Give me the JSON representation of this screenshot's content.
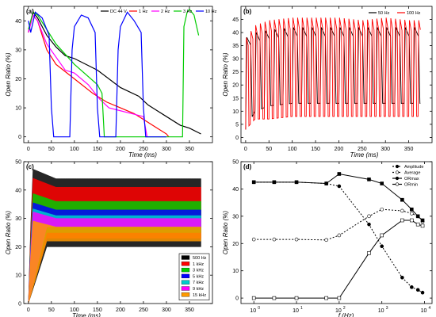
{
  "chart_data": [
    {
      "panel": "(a)",
      "type": "line",
      "xlabel": "Time (ms)",
      "ylabel": "Open Ratio (%)",
      "xlim": [
        -10,
        400
      ],
      "ylim": [
        -2,
        45
      ],
      "xticks": [
        0,
        50,
        100,
        150,
        200,
        250,
        300,
        350
      ],
      "yticks": [
        0,
        10,
        20,
        30,
        40
      ],
      "legend": "top-right",
      "series": [
        {
          "name": "DC 44 V",
          "color": "#000000",
          "x": [
            0,
            10,
            20,
            40,
            60,
            80,
            100,
            150,
            200,
            240,
            260,
            280,
            300,
            330,
            350,
            375
          ],
          "y": [
            36,
            43,
            41,
            35,
            31,
            28,
            27,
            23,
            17,
            14,
            11,
            9,
            7,
            4,
            3,
            1
          ]
        },
        {
          "name": "1 Hz",
          "color": "#ff0000",
          "x": [
            0,
            10,
            20,
            40,
            60,
            100,
            140,
            170,
            200,
            230,
            260,
            280,
            300,
            305
          ],
          "y": [
            36,
            42,
            40,
            30,
            25,
            20,
            15,
            12,
            10,
            8,
            5,
            3,
            1,
            0
          ]
        },
        {
          "name": "2 Hz",
          "color": "#ff00ff",
          "x": [
            0,
            10,
            20,
            40,
            80,
            100,
            130,
            155,
            175,
            200,
            225,
            250,
            258
          ],
          "y": [
            36,
            42,
            40,
            32,
            23,
            22,
            18,
            13,
            10,
            9,
            8,
            7,
            0
          ]
        },
        {
          "name": "3 Hz",
          "color": "#00cc00",
          "x": [
            0,
            10,
            20,
            60,
            100,
            150,
            160,
            165,
            170,
            335,
            338,
            345,
            350,
            360,
            370
          ],
          "y": [
            37,
            43,
            42,
            32,
            25,
            18,
            15,
            0,
            0,
            0,
            38,
            43,
            44,
            42,
            35
          ]
        },
        {
          "name": "10 Hz",
          "color": "#0000ff",
          "x": [
            0,
            5,
            15,
            30,
            45,
            50,
            55,
            90,
            95,
            100,
            115,
            130,
            145,
            150,
            155,
            190,
            195,
            200,
            215,
            230,
            245,
            250,
            255,
            300
          ],
          "y": [
            40,
            36,
            43,
            41,
            35,
            10,
            0,
            0,
            30,
            38,
            42,
            41,
            36,
            10,
            0,
            0,
            30,
            38,
            43,
            40,
            36,
            10,
            0,
            0
          ]
        }
      ]
    },
    {
      "panel": "(b)",
      "type": "line",
      "xlabel": "Time (ms)",
      "ylabel": "Open Ratio (%)",
      "xlim": [
        -10,
        400
      ],
      "ylim": [
        -2,
        50
      ],
      "xticks": [
        0,
        50,
        100,
        150,
        200,
        250,
        300,
        350
      ],
      "yticks": [
        0,
        5,
        10,
        15,
        20,
        25,
        30,
        35,
        40,
        45
      ],
      "legend": "top-right",
      "series": [
        {
          "name": "50 Hz",
          "color": "#000000",
          "x": [
            0,
            20,
            50,
            100,
            150,
            200,
            250,
            300,
            350,
            375
          ],
          "y_max": [
            38,
            40,
            41,
            42,
            42,
            42,
            42,
            42,
            42,
            42
          ],
          "y_min": [
            3,
            10,
            12,
            13,
            13,
            13,
            13,
            13,
            13,
            13
          ],
          "period_ms": 20
        },
        {
          "name": "100 Hz",
          "color": "#ff0000",
          "x": [
            0,
            20,
            50,
            100,
            150,
            200,
            250,
            300,
            350,
            375
          ],
          "y_max": [
            38,
            43,
            45,
            46,
            46,
            46,
            45,
            46,
            45,
            45
          ],
          "y_min": [
            3,
            7,
            7,
            8,
            8,
            8,
            8,
            8,
            8,
            8
          ],
          "period_ms": 10
        }
      ]
    },
    {
      "panel": "(c)",
      "type": "area",
      "xlabel": "Time (ms)",
      "ylabel": "Open Ratio (%)",
      "xlim": [
        -10,
        400
      ],
      "ylim": [
        0,
        50
      ],
      "xticks": [
        0,
        50,
        100,
        150,
        200,
        250,
        300,
        350
      ],
      "yticks": [
        0,
        10,
        20,
        30,
        40,
        50
      ],
      "legend": "bottom-right",
      "series": [
        {
          "name": "500 Hz",
          "color": "#000000",
          "upper": 44,
          "lower": 20
        },
        {
          "name": "1 kHz",
          "color": "#ff0000",
          "upper": 41,
          "lower": 23
        },
        {
          "name": "3 kHz",
          "color": "#00cc00",
          "upper": 36,
          "lower": 25
        },
        {
          "name": "5 kHz",
          "color": "#0000ff",
          "upper": 33,
          "lower": 27
        },
        {
          "name": "7 kHz",
          "color": "#00cccc",
          "upper": 31,
          "lower": 27
        },
        {
          "name": "9 kHz",
          "color": "#ff00ff",
          "upper": 30,
          "lower": 27
        },
        {
          "name": "15 kHz",
          "color": "#ff9900",
          "upper": 27,
          "lower": 22
        }
      ]
    },
    {
      "panel": "(d)",
      "type": "line",
      "xlabel": "f (Hz)",
      "ylabel": "Open Ratio (%)",
      "xscale": "log",
      "xlim": [
        0.5,
        15000
      ],
      "ylim": [
        -2,
        50
      ],
      "xticks": [
        1,
        10,
        100,
        1000,
        10000
      ],
      "xtick_labels": [
        [
          "10",
          "0"
        ],
        [
          "10",
          "1"
        ],
        [
          "10",
          "2"
        ],
        [
          "10",
          "3"
        ],
        [
          "10",
          "4"
        ]
      ],
      "yticks": [
        0,
        10,
        20,
        30,
        40,
        50
      ],
      "legend": "top-right",
      "x": [
        1,
        3,
        10,
        50,
        100,
        500,
        1000,
        3000,
        5000,
        7000,
        9000
      ],
      "series": [
        {
          "name": "Amplitude",
          "color": "#000000",
          "values": [
            42.5,
            42.5,
            42.5,
            42,
            41,
            27,
            19,
            7.5,
            4,
            3,
            2
          ]
        },
        {
          "name": "Average",
          "color": "#000000",
          "values": [
            21.5,
            21.5,
            21.5,
            21.3,
            23,
            30,
            32.5,
            32,
            31,
            30,
            28
          ]
        },
        {
          "name": "ORmax",
          "color": "#000000",
          "values": [
            42.5,
            42.5,
            42.5,
            42,
            45.5,
            43.5,
            42,
            36,
            32.5,
            30,
            28.5
          ]
        },
        {
          "name": "ORmin",
          "color": "#000000",
          "values": [
            0,
            0,
            0,
            0,
            0,
            16.5,
            23,
            28.5,
            28.5,
            27,
            26.5
          ]
        }
      ]
    }
  ]
}
